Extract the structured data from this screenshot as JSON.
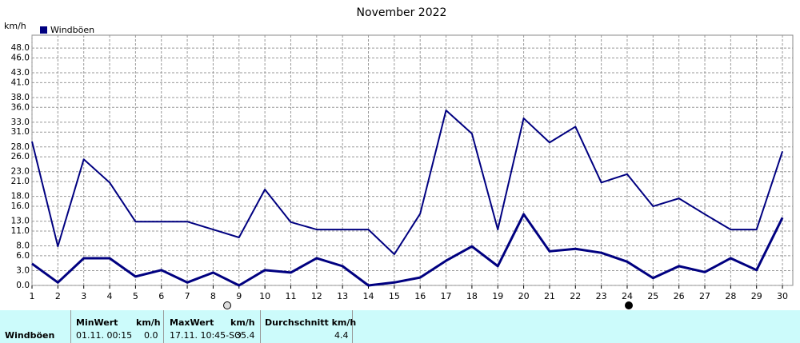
{
  "chart_data": {
    "type": "line",
    "title": "November 2022",
    "y_label": "km/h",
    "x": [
      1,
      2,
      3,
      4,
      5,
      6,
      7,
      8,
      9,
      10,
      11,
      12,
      13,
      14,
      15,
      16,
      17,
      18,
      19,
      20,
      21,
      22,
      23,
      24,
      25,
      26,
      27,
      28,
      29,
      30
    ],
    "series": [
      {
        "name": "Windböen",
        "color": "#000080",
        "values": [
          29.1,
          7.9,
          25.5,
          20.8,
          12.9,
          12.9,
          12.9,
          11.3,
          9.7,
          19.4,
          12.8,
          11.3,
          11.3,
          11.3,
          6.3,
          14.5,
          35.4,
          30.7,
          11.3,
          33.8,
          28.9,
          32.1,
          20.8,
          22.5,
          16.0,
          17.6,
          14.4,
          11.3,
          11.3,
          27.1
        ]
      },
      {
        "color": "#000080",
        "values": [
          4.4,
          0.6,
          5.5,
          5.5,
          1.8,
          3.1,
          0.6,
          2.6,
          0,
          3.1,
          2.6,
          5.5,
          3.9,
          0,
          0.6,
          1.6,
          5.0,
          7.9,
          3.9,
          14.4,
          6.9,
          7.4,
          6.6,
          4.8,
          1.5,
          3.9,
          2.7,
          5.5,
          3.1,
          13.7
        ]
      }
    ],
    "xlim": [
      1,
      30.4
    ],
    "xticks": [
      1,
      2,
      3,
      4,
      5,
      6,
      7,
      8,
      9,
      10,
      11,
      12,
      13,
      14,
      15,
      16,
      17,
      18,
      19,
      20,
      21,
      22,
      23,
      24,
      25,
      26,
      27,
      28,
      29,
      30
    ],
    "ylim": [
      0,
      50.6
    ],
    "yticks": [
      {
        "value": 0,
        "label": "0.0"
      },
      {
        "value": 3,
        "label": "3.0"
      },
      {
        "value": 6,
        "label": "6.0"
      },
      {
        "value": 8,
        "label": "8.0"
      },
      {
        "value": 11,
        "label": "11.0"
      },
      {
        "value": 13,
        "label": "13.0"
      },
      {
        "value": 16,
        "label": "16.0"
      },
      {
        "value": 18,
        "label": "18.0"
      },
      {
        "value": 21,
        "label": "21.0"
      },
      {
        "value": 23,
        "label": "23.0"
      },
      {
        "value": 26,
        "label": "26.0"
      },
      {
        "value": 28,
        "label": "28.0"
      },
      {
        "value": 31,
        "label": "31.0"
      },
      {
        "value": 33,
        "label": "33.0"
      },
      {
        "value": 36,
        "label": "36.0"
      },
      {
        "value": 38,
        "label": "38.0"
      },
      {
        "value": 41,
        "label": "41.0"
      },
      {
        "value": 43,
        "label": "43.0"
      },
      {
        "value": 46,
        "label": "46.0"
      },
      {
        "value": 48,
        "label": "48.0"
      }
    ],
    "grid": true
  },
  "table": {
    "row_label": "Windböen",
    "columns": [
      {
        "header": "MinWert",
        "unit": "km/h",
        "time": "01.11.  00:15",
        "value": "0.0"
      },
      {
        "header": "MaxWert",
        "unit": "km/h",
        "time": "17.11.  10:45-SO",
        "value": "35.4"
      },
      {
        "header": "Durchschnitt km/h",
        "value": "4.4"
      }
    ]
  }
}
